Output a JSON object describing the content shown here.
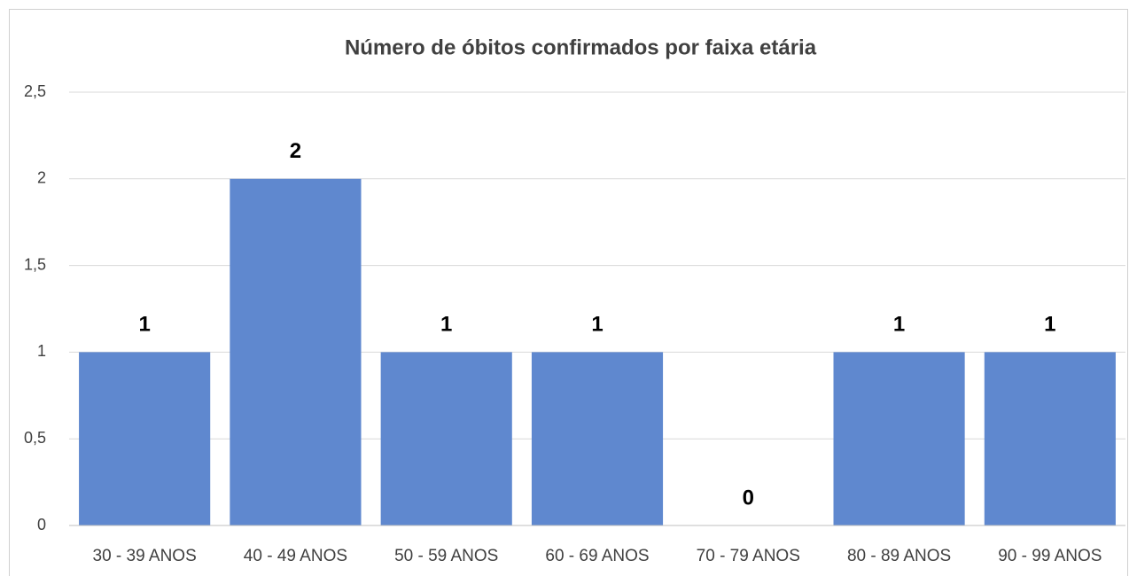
{
  "chart_data": {
    "type": "bar",
    "title": "Número de óbitos confirmados por faixa etária",
    "categories": [
      "30 - 39 ANOS",
      "40 - 49 ANOS",
      "50 - 59 ANOS",
      "60 - 69 ANOS",
      "70 - 79 ANOS",
      "80 - 89 ANOS",
      "90 - 99 ANOS"
    ],
    "values": [
      1,
      2,
      1,
      1,
      0,
      1,
      1
    ],
    "color": "#5f88cf",
    "ylim": [
      0,
      2.5
    ],
    "yticks": [
      0,
      {
        "value": 0.5,
        "label": "0,5"
      },
      1,
      {
        "value": 1.5,
        "label": "1,5"
      },
      2,
      {
        "value": 2.5,
        "label": "2,5"
      }
    ],
    "grid": true
  }
}
